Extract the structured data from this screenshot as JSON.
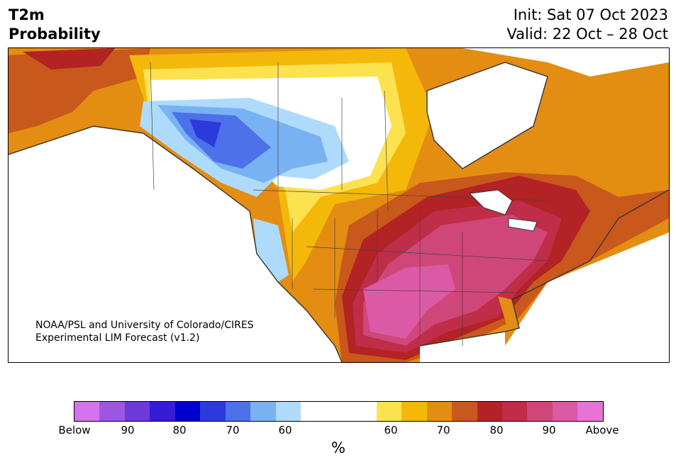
{
  "header": {
    "variable": "T2m",
    "field": "Probability",
    "init": "Init: Sat 07 Oct 2023",
    "valid": "Valid: 22 Oct – 28 Oct"
  },
  "credit": {
    "line1": "NOAA/PSL and University of Colorado/CIRES",
    "line2": "Experimental LIM Forecast (v1.2)"
  },
  "colorbar": {
    "below_colors": [
      "#d573ec",
      "#9b57e3",
      "#6d39d9",
      "#361cd6",
      "#0000cc",
      "#2b3bdb",
      "#4c71e8",
      "#78b2f2",
      "#aedbfb"
    ],
    "neutral_color": "#ffffff",
    "above_colors": [
      "#fde250",
      "#f4b80b",
      "#e38d12",
      "#c8581b",
      "#b32224",
      "#bf2d48",
      "#cf4679",
      "#dc5aa5",
      "#e873d6"
    ],
    "ticks": [
      "Below",
      "90",
      "80",
      "70",
      "60",
      "60",
      "70",
      "80",
      "90",
      "Above"
    ],
    "unit": "%"
  }
}
